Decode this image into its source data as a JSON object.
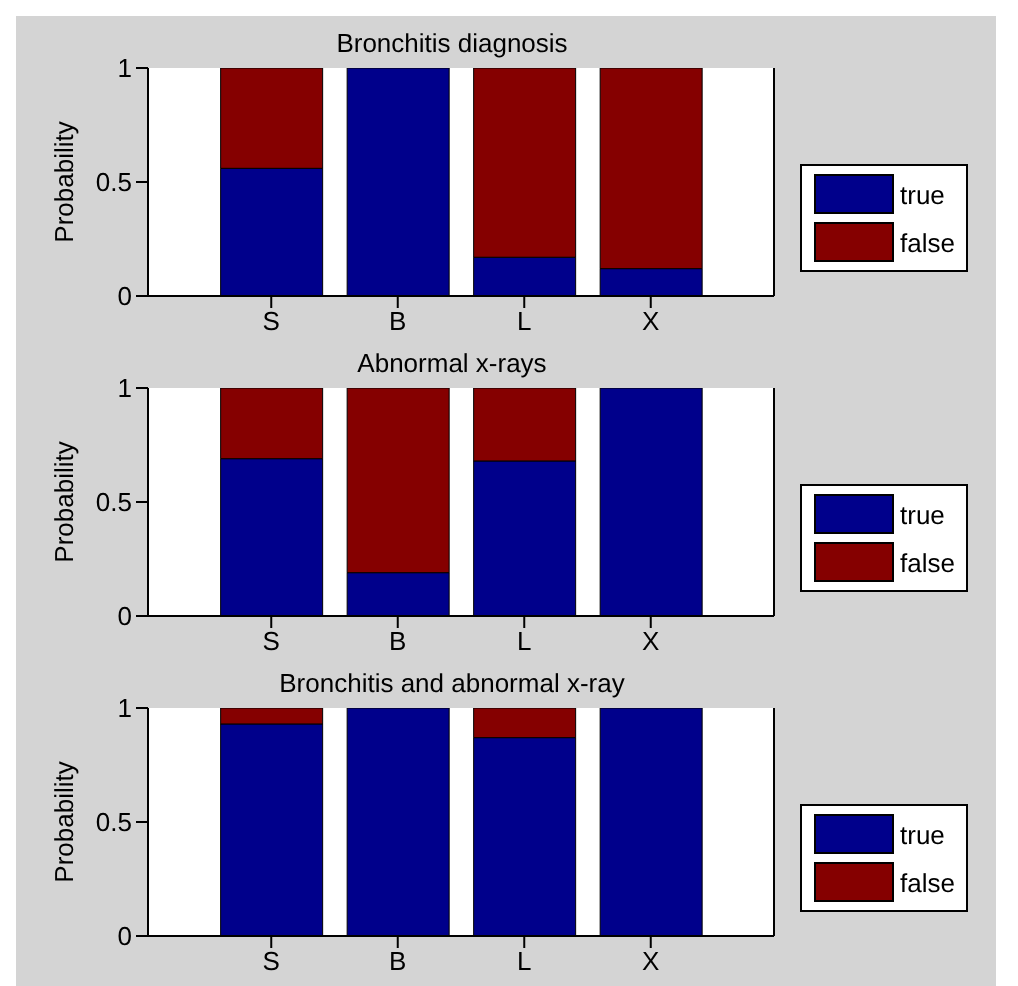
{
  "chart_data": [
    {
      "type": "bar",
      "title": "Bronchitis diagnosis",
      "ylabel": "Probability",
      "categories": [
        "S",
        "B",
        "L",
        "X"
      ],
      "stacked": true,
      "ylim": [
        0,
        1
      ],
      "yticks": [
        0,
        0.5,
        1
      ],
      "legend": "right",
      "series": [
        {
          "name": "true",
          "color": "#00008b",
          "values": [
            0.56,
            1,
            0.17,
            0.12
          ]
        },
        {
          "name": "false",
          "color": "#850000",
          "values": [
            0.44,
            0,
            0.83,
            0.88
          ]
        }
      ]
    },
    {
      "type": "bar",
      "title": "Abnormal x-rays",
      "ylabel": "Probability",
      "categories": [
        "S",
        "B",
        "L",
        "X"
      ],
      "stacked": true,
      "ylim": [
        0,
        1
      ],
      "yticks": [
        0,
        0.5,
        1
      ],
      "legend": "right",
      "series": [
        {
          "name": "true",
          "color": "#00008b",
          "values": [
            0.69,
            0.19,
            0.68,
            1
          ]
        },
        {
          "name": "false",
          "color": "#850000",
          "values": [
            0.31,
            0.81,
            0.32,
            0
          ]
        }
      ]
    },
    {
      "type": "bar",
      "title": "Bronchitis and abnormal x-ray",
      "ylabel": "Probability",
      "categories": [
        "S",
        "B",
        "L",
        "X"
      ],
      "stacked": true,
      "ylim": [
        0,
        1
      ],
      "yticks": [
        0,
        0.5,
        1
      ],
      "legend": "right",
      "series": [
        {
          "name": "true",
          "color": "#00008b",
          "values": [
            0.93,
            1,
            0.87,
            1
          ]
        },
        {
          "name": "false",
          "color": "#850000",
          "values": [
            0.07,
            0,
            0.13,
            0
          ]
        }
      ]
    }
  ]
}
